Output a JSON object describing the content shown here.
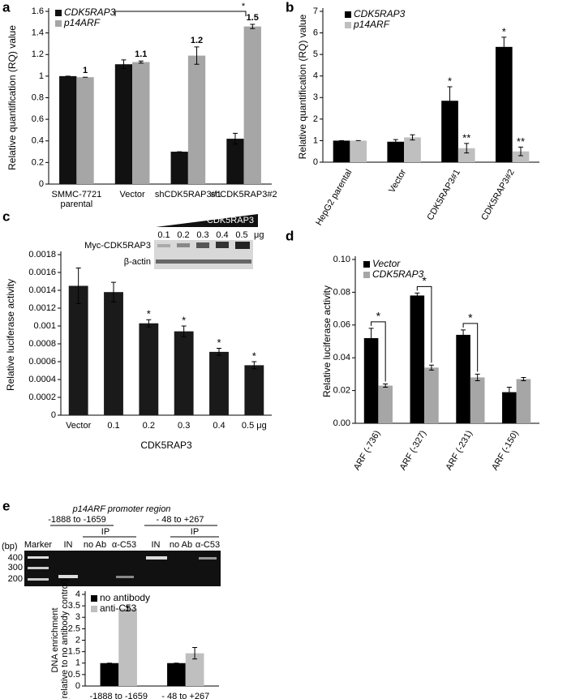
{
  "chart_data": [
    {
      "type": "bar",
      "panel": "a",
      "ylabel": "Relative quantification (RQ) value",
      "categories": [
        [
          "SMMC-7721",
          "parental"
        ],
        "Vector",
        "shCDK5RAP3#1",
        "shCDK5RAP3#2"
      ],
      "series": [
        {
          "name": "CDK5RAP3",
          "color": "#111111",
          "values": [
            1.0,
            1.11,
            0.3,
            0.42
          ],
          "errors": [
            0.0,
            0.04,
            0.0,
            0.05
          ]
        },
        {
          "name": "p14ARF",
          "color": "#a6a6a6",
          "values": [
            0.99,
            1.13,
            1.19,
            1.46
          ],
          "errors": [
            0.0,
            0.01,
            0.08,
            0.02
          ],
          "value_labels": [
            "1",
            "1.1",
            "1.2",
            "1.5"
          ]
        }
      ],
      "annotation": "*",
      "ylim": [
        0,
        1.6
      ],
      "yticks": [
        0,
        0.2,
        0.4,
        0.6,
        0.8,
        1,
        1.2,
        1.4,
        1.6
      ]
    },
    {
      "type": "bar",
      "panel": "b",
      "ylabel": "Relative quantification (RQ) value",
      "categories": [
        "HepG2 parental",
        "Vector",
        "CDK5RAP3#1",
        "CDK5RAP3#2"
      ],
      "series": [
        {
          "name": "CDK5RAP3",
          "color": "#000000",
          "values": [
            1.0,
            0.95,
            2.85,
            5.35
          ],
          "errors": [
            0.0,
            0.1,
            0.65,
            0.45
          ],
          "significance": [
            null,
            null,
            "*",
            "*"
          ]
        },
        {
          "name": "p14ARF",
          "color": "#bfbfbf",
          "values": [
            1.0,
            1.15,
            0.65,
            0.5
          ],
          "errors": [
            0.0,
            0.12,
            0.22,
            0.2
          ],
          "significance": [
            null,
            null,
            "**",
            "**"
          ]
        }
      ],
      "ylim": [
        0,
        7
      ],
      "yticks": [
        0,
        1,
        2,
        3,
        4,
        5,
        6,
        7
      ]
    },
    {
      "type": "bar",
      "panel": "c",
      "ylabel": "Relative luciferase activity",
      "xlabel": "CDK5RAP3",
      "categories": [
        "Vector",
        "0.1",
        "0.2",
        "0.3",
        "0.4",
        "0.5 μg"
      ],
      "values": [
        0.00145,
        0.00138,
        0.00103,
        0.00094,
        0.00071,
        0.00056
      ],
      "errors": [
        0.0002,
        0.00011,
        4e-05,
        6e-05,
        4e-05,
        4e-05
      ],
      "significance": [
        null,
        null,
        "*",
        "*",
        "*",
        "*"
      ],
      "color": "#1a1a1a",
      "inset": {
        "title": "CDK5RAP3",
        "lanes": [
          "0.1",
          "0.2",
          "0.3",
          "0.4",
          "0.5"
        ],
        "unit": "μg",
        "rows": [
          "Myc-CDK5RAP3",
          "β-actin"
        ]
      },
      "ylim": [
        0,
        0.0018
      ],
      "yticks": [
        0,
        0.0002,
        0.0004,
        0.0006,
        0.0008,
        0.001,
        0.0012,
        0.0014,
        0.0016,
        0.0018
      ]
    },
    {
      "type": "bar",
      "panel": "d",
      "ylabel": "Relative luciferase activity",
      "categories": [
        "ARF (-736)",
        "ARF (-327)",
        "ARF (-231)",
        "ARF (-150)"
      ],
      "series": [
        {
          "name": "Vector",
          "color": "#000000",
          "values": [
            0.052,
            0.078,
            0.054,
            0.019
          ],
          "errors": [
            0.006,
            0.0015,
            0.003,
            0.003
          ],
          "significance": [
            "*",
            "*",
            "*",
            null
          ]
        },
        {
          "name": "CDK5RAP3",
          "color": "#a6a6a6",
          "values": [
            0.023,
            0.034,
            0.028,
            0.027
          ],
          "errors": [
            0.001,
            0.0015,
            0.002,
            0.001
          ]
        }
      ],
      "ylim": [
        0,
        0.1
      ],
      "yticks": [
        {
          "value": 0,
          "label": "0.00"
        },
        {
          "value": 0.02,
          "label": "0.02"
        },
        {
          "value": 0.04,
          "label": "0.04"
        },
        {
          "value": 0.06,
          "label": "0.06"
        },
        {
          "value": 0.08,
          "label": "0.08"
        },
        {
          "value": 0.1,
          "label": "0.10"
        }
      ]
    },
    {
      "type": "bar",
      "panel": "e",
      "ylabel": [
        "DNA enrichment",
        "(relative to no antibody control)"
      ],
      "gel": {
        "title": "p14ARF promoter region",
        "regions": [
          "-1888 to  -1659",
          "- 48 to +267"
        ],
        "ip": [
          "IP",
          "IP"
        ],
        "lanes": [
          "Marker",
          "IN",
          "no Ab",
          "α-C53",
          "IN",
          "no Ab",
          "α-C53"
        ],
        "unit": "(bp)",
        "sizes": [
          "400",
          "300",
          "200"
        ]
      },
      "categories": [
        "-1888 to -1659",
        "- 48 to +267"
      ],
      "series": [
        {
          "name": "no antibody",
          "color": "#000000",
          "values": [
            1.0,
            1.0
          ],
          "errors": [
            0.0,
            0.0
          ]
        },
        {
          "name": "anti-C53",
          "color": "#bfbfbf",
          "values": [
            3.38,
            1.43
          ],
          "errors": [
            0.1,
            0.25
          ]
        }
      ],
      "ylim": [
        0,
        4
      ],
      "yticks": [
        0,
        0.5,
        1,
        1.5,
        2,
        2.5,
        3,
        3.5,
        4
      ]
    }
  ]
}
